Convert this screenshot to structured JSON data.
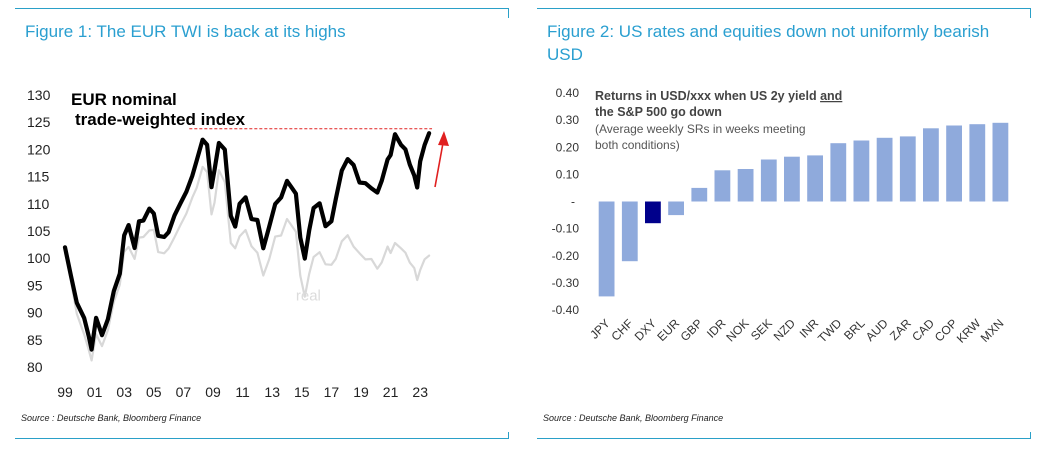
{
  "figures": [
    {
      "title": "Figure 1: The EUR TWI is back at its highs",
      "source": "Source : Deutsche Bank, Bloomberg Finance"
    },
    {
      "title": "Figure 2: US rates and equities down not uniformly bearish USD",
      "source": "Source : Deutsche Bank, Bloomberg Finance"
    }
  ],
  "colors": {
    "accent": "#2aa0c8",
    "nominal": "#000000",
    "real": "#d8d8d8",
    "bar": "#8faadc",
    "bar_highlight": "#00008b",
    "dash": "#e02020"
  },
  "chart_data": [
    {
      "type": "line",
      "title": "EUR nominal",
      "subtitle": "trade-weighted index",
      "xlabel": "",
      "ylabel": "",
      "ylim": [
        80,
        130
      ],
      "xlim": [
        1999,
        2024
      ],
      "yticks": [
        "80",
        "85",
        "90",
        "95",
        "100",
        "105",
        "110",
        "115",
        "120",
        "125",
        "130"
      ],
      "xticks": [
        "99",
        "01",
        "03",
        "05",
        "07",
        "09",
        "11",
        "13",
        "15",
        "17",
        "19",
        "21",
        "23"
      ],
      "annotations": {
        "real_label": "real",
        "high_line": 123.8
      },
      "series": [
        {
          "name": "nominal",
          "x": [
            1999.0,
            1999.4,
            1999.8,
            2000.3,
            2000.6,
            2000.8,
            2001.1,
            2001.5,
            2001.9,
            2002.3,
            2002.7,
            2003.0,
            2003.3,
            2003.7,
            2004.0,
            2004.3,
            2004.7,
            2005.0,
            2005.3,
            2005.7,
            2006.0,
            2006.4,
            2006.8,
            2007.2,
            2007.6,
            2007.9,
            2008.3,
            2008.6,
            2008.9,
            2009.1,
            2009.4,
            2009.8,
            2010.2,
            2010.5,
            2010.8,
            2011.2,
            2011.6,
            2012.0,
            2012.4,
            2012.8,
            2013.2,
            2013.6,
            2014.0,
            2014.3,
            2014.6,
            2014.9,
            2015.2,
            2015.5,
            2015.8,
            2016.2,
            2016.6,
            2017.0,
            2017.3,
            2017.7,
            2018.1,
            2018.5,
            2018.9,
            2019.3,
            2019.7,
            2020.1,
            2020.4,
            2020.8,
            2021.0,
            2021.3,
            2021.7,
            2022.0,
            2022.3,
            2022.6,
            2022.8,
            2023.0,
            2023.3,
            2023.6
          ],
          "y": [
            102,
            97,
            92,
            89,
            85.5,
            83,
            89,
            86,
            89,
            94,
            97,
            104,
            106,
            102,
            107,
            107,
            109,
            108,
            104,
            104,
            105,
            108,
            110,
            112,
            115,
            118,
            122,
            121,
            113,
            116,
            121,
            120,
            108,
            106,
            110,
            111,
            107,
            107,
            102,
            106,
            110,
            111,
            114,
            113,
            112,
            104,
            100,
            105,
            109,
            110,
            106,
            107,
            111,
            116,
            118,
            117,
            114,
            114,
            113,
            112,
            114,
            118,
            119,
            123,
            121,
            120,
            117,
            115,
            113,
            118,
            121,
            123
          ]
        },
        {
          "name": "real",
          "x": [
            1999.0,
            1999.4,
            1999.8,
            2000.3,
            2000.6,
            2000.8,
            2001.1,
            2001.5,
            2001.9,
            2002.3,
            2002.7,
            2003.0,
            2003.3,
            2003.7,
            2004.0,
            2004.3,
            2004.7,
            2005.0,
            2005.3,
            2005.7,
            2006.0,
            2006.4,
            2006.8,
            2007.2,
            2007.6,
            2007.9,
            2008.3,
            2008.6,
            2008.9,
            2009.1,
            2009.4,
            2009.8,
            2010.2,
            2010.5,
            2010.8,
            2011.2,
            2011.6,
            2012.0,
            2012.4,
            2012.8,
            2013.2,
            2013.6,
            2014.0,
            2014.3,
            2014.6,
            2014.9,
            2015.2,
            2015.5,
            2015.8,
            2016.2,
            2016.6,
            2017.0,
            2017.3,
            2017.7,
            2018.1,
            2018.5,
            2018.9,
            2019.3,
            2019.7,
            2020.1,
            2020.4,
            2020.8,
            2021.0,
            2021.3,
            2021.7,
            2022.0,
            2022.3,
            2022.6,
            2022.8,
            2023.0,
            2023.3,
            2023.6
          ],
          "y": [
            101,
            96,
            90,
            86,
            83,
            81,
            86,
            84,
            87,
            92,
            95,
            101,
            102,
            100,
            104,
            104,
            105,
            105,
            101,
            101,
            102,
            104,
            106,
            108,
            111,
            113,
            117,
            116,
            108,
            110,
            116,
            114,
            103,
            102,
            104,
            105,
            102,
            101,
            97,
            100,
            104,
            104,
            107,
            106,
            105,
            97,
            93,
            97,
            100,
            101,
            99,
            99,
            100,
            103,
            104,
            102,
            101,
            100,
            100,
            98,
            99,
            102,
            101,
            103,
            102,
            101,
            99,
            98,
            96,
            98,
            100,
            100.5
          ]
        }
      ]
    },
    {
      "type": "bar",
      "title": "Returns in USD/xxx when US 2y yield and the S&P 500 go down",
      "title_line1": "Returns in USD/xxx when US 2y yield ",
      "title_underlined": "and",
      "title_line2": "the S&P 500 go down",
      "subtitle_line1": "(Average weekly SRs in weeks meeting",
      "subtitle_line2": " both conditions)",
      "xlabel": "",
      "ylabel": "",
      "ylim": [
        -0.4,
        0.4
      ],
      "yticks": [
        "0.40",
        "0.30",
        "0.20",
        "0.10",
        "-",
        "-0.10",
        "-0.20",
        "-0.30",
        "-0.40"
      ],
      "categories": [
        "JPY",
        "CHF",
        "DXY",
        "EUR",
        "GBP",
        "IDR",
        "NOK",
        "SEK",
        "NZD",
        "INR",
        "TWD",
        "BRL",
        "AUD",
        "ZAR",
        "CAD",
        "COP",
        "KRW",
        "MXN"
      ],
      "values": [
        -0.35,
        -0.22,
        -0.08,
        -0.05,
        0.05,
        0.115,
        0.12,
        0.155,
        0.165,
        0.17,
        0.215,
        0.225,
        0.235,
        0.24,
        0.27,
        0.28,
        0.285,
        0.29
      ],
      "highlight": "DXY"
    }
  ]
}
